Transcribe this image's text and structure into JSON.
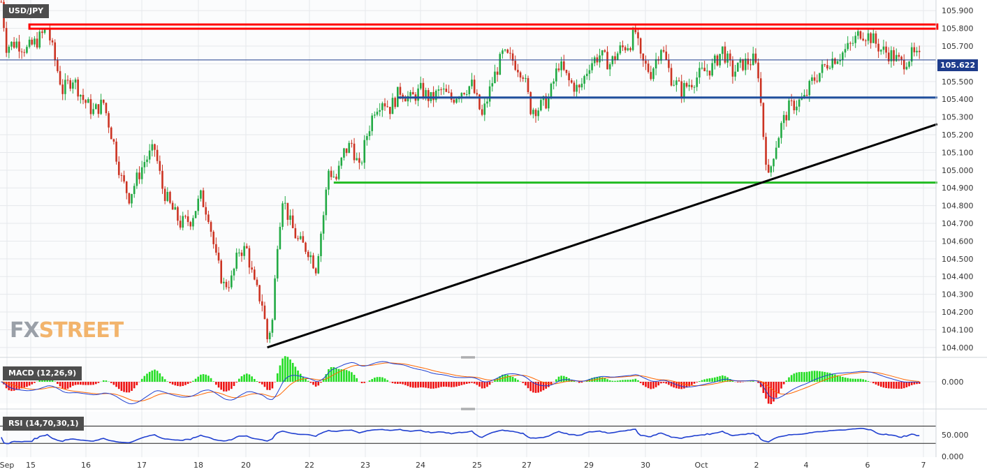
{
  "chart_data": [
    {
      "type": "candlestick",
      "title": "USD/JPY",
      "ylim": [
        103.96,
        105.96
      ],
      "y_ticks": [
        "105.900",
        "105.800",
        "105.700",
        "105.600",
        "105.500",
        "105.400",
        "105.300",
        "105.200",
        "105.100",
        "105.000",
        "104.900",
        "104.800",
        "104.700",
        "104.600",
        "104.500",
        "104.400",
        "104.300",
        "104.200",
        "104.100",
        "104.000"
      ],
      "x_ticks": [
        "Sep",
        "15",
        "16",
        "17",
        "18",
        "20",
        "22",
        "23",
        "24",
        "25",
        "27",
        "29",
        "30",
        "Oct",
        "2",
        "4",
        "6",
        "7"
      ],
      "last_price": "105.622",
      "close_path": [
        [
          0,
          105.95
        ],
        [
          2,
          105.7
        ],
        [
          6,
          105.72
        ],
        [
          10,
          105.68
        ],
        [
          14,
          105.73
        ],
        [
          18,
          105.8
        ],
        [
          21,
          105.62
        ],
        [
          24,
          105.45
        ],
        [
          28,
          105.52
        ],
        [
          32,
          105.4
        ],
        [
          36,
          105.33
        ],
        [
          40,
          105.38
        ],
        [
          44,
          105.15
        ],
        [
          47,
          104.95
        ],
        [
          50,
          104.85
        ],
        [
          53,
          104.95
        ],
        [
          56,
          105.05
        ],
        [
          60,
          105.12
        ],
        [
          63,
          104.9
        ],
        [
          66,
          104.8
        ],
        [
          70,
          104.7
        ],
        [
          74,
          104.72
        ],
        [
          78,
          104.85
        ],
        [
          81,
          104.75
        ],
        [
          84,
          104.5
        ],
        [
          87,
          104.35
        ],
        [
          90,
          104.38
        ],
        [
          93,
          104.55
        ],
        [
          96,
          104.55
        ],
        [
          99,
          104.35
        ],
        [
          102,
          104.25
        ],
        [
          104,
          104.05
        ],
        [
          106,
          104.15
        ],
        [
          108,
          104.6
        ],
        [
          110,
          104.85
        ],
        [
          113,
          104.7
        ],
        [
          116,
          104.6
        ],
        [
          120,
          104.55
        ],
        [
          123,
          104.45
        ],
        [
          126,
          104.75
        ],
        [
          128,
          105.0
        ],
        [
          131,
          104.95
        ],
        [
          134,
          105.1
        ],
        [
          137,
          105.15
        ],
        [
          140,
          105.0
        ],
        [
          143,
          105.2
        ],
        [
          146,
          105.35
        ],
        [
          149,
          105.4
        ],
        [
          152,
          105.35
        ],
        [
          156,
          105.45
        ],
        [
          160,
          105.4
        ],
        [
          164,
          105.45
        ],
        [
          168,
          105.4
        ],
        [
          172,
          105.45
        ],
        [
          176,
          105.4
        ],
        [
          180,
          105.45
        ],
        [
          184,
          105.48
        ],
        [
          188,
          105.3
        ],
        [
          192,
          105.5
        ],
        [
          196,
          105.65
        ],
        [
          200,
          105.62
        ],
        [
          204,
          105.55
        ],
        [
          207,
          105.35
        ],
        [
          210,
          105.35
        ],
        [
          214,
          105.4
        ],
        [
          218,
          105.6
        ],
        [
          222,
          105.5
        ],
        [
          226,
          105.45
        ],
        [
          230,
          105.6
        ],
        [
          234,
          105.65
        ],
        [
          238,
          105.6
        ],
        [
          242,
          105.68
        ],
        [
          246,
          105.72
        ],
        [
          248,
          105.78
        ],
        [
          250,
          105.62
        ],
        [
          254,
          105.55
        ],
        [
          258,
          105.7
        ],
        [
          262,
          105.52
        ],
        [
          266,
          105.45
        ],
        [
          270,
          105.5
        ],
        [
          274,
          105.55
        ],
        [
          278,
          105.58
        ],
        [
          282,
          105.68
        ],
        [
          286,
          105.55
        ],
        [
          290,
          105.6
        ],
        [
          294,
          105.62
        ],
        [
          296,
          105.55
        ],
        [
          298,
          105.2
        ],
        [
          300,
          104.95
        ],
        [
          302,
          105.1
        ],
        [
          305,
          105.25
        ],
        [
          308,
          105.35
        ],
        [
          311,
          105.38
        ],
        [
          314,
          105.4
        ],
        [
          317,
          105.5
        ],
        [
          320,
          105.55
        ],
        [
          324,
          105.62
        ],
        [
          328,
          105.65
        ],
        [
          332,
          105.7
        ],
        [
          336,
          105.78
        ],
        [
          340,
          105.75
        ],
        [
          344,
          105.68
        ],
        [
          348,
          105.65
        ],
        [
          352,
          105.6
        ],
        [
          356,
          105.65
        ],
        [
          360,
          105.62
        ]
      ],
      "annotations": [
        {
          "kind": "resistance",
          "color": "#ff0000",
          "y": 105.81,
          "x0": 11,
          "x1": 366
        },
        {
          "kind": "horizontal",
          "color": "#1f4e9c",
          "y": 105.41,
          "x0": 155,
          "x1": 366
        },
        {
          "kind": "horizontal",
          "color": "#22bb22",
          "y": 104.93,
          "x0": 130,
          "x1": 366
        },
        {
          "kind": "trendline",
          "color": "#000000",
          "y0": 104.0,
          "y1": 105.26,
          "x0": 104,
          "x1": 366
        }
      ]
    },
    {
      "type": "macd",
      "label": "MACD (12,26,9)",
      "ylim": [
        -0.06,
        0.06
      ],
      "y_ticks": [
        "0.000"
      ]
    },
    {
      "type": "rsi",
      "label": "RSI (14,70,30,1)",
      "ylim": [
        0,
        100
      ],
      "y_ticks": [
        "50.000",
        "0.000"
      ],
      "levels": [
        70,
        30
      ]
    }
  ],
  "watermark": {
    "part1": "FX",
    "part2": "STREET",
    "color1": "#9aa0a8",
    "color2": "#f2b46c"
  },
  "colors": {
    "up": "#22aa44",
    "down": "#cc3322",
    "grid": "#e6e8ec",
    "axis_text": "#333333",
    "macd_line": "#1f3fd0",
    "signal_line": "#ff6600",
    "hist_pos": "#22dd22",
    "hist_neg": "#ee1111",
    "rsi_line": "#1f3fd0"
  }
}
